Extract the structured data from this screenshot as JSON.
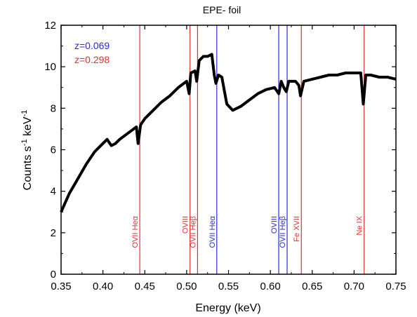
{
  "chart_data": {
    "type": "line",
    "title": "EPE- foil",
    "xlabel": "Energy (keV)",
    "ylabel_parts": {
      "counts": "Counts s",
      "exp1": "-1",
      "kev": " keV",
      "exp2": "-1"
    },
    "xlim": [
      0.35,
      0.75
    ],
    "ylim": [
      0,
      12
    ],
    "x_ticks": [
      "0.35",
      "0.40",
      "0.45",
      "0.50",
      "0.55",
      "0.60",
      "0.65",
      "0.70",
      "0.75"
    ],
    "y_ticks": [
      "0",
      "2",
      "4",
      "6",
      "8",
      "10",
      "12"
    ],
    "grid": false,
    "legend": [
      {
        "label": "z=0.069",
        "color": "#2a2adb"
      },
      {
        "label": "z=0.298",
        "color": "#e03030"
      }
    ],
    "series": [
      {
        "color": "#000000",
        "x": [
          0.35,
          0.36,
          0.37,
          0.38,
          0.39,
          0.4,
          0.405,
          0.41,
          0.415,
          0.42,
          0.43,
          0.44,
          0.442,
          0.445,
          0.45,
          0.46,
          0.47,
          0.48,
          0.49,
          0.5,
          0.503,
          0.505,
          0.51,
          0.512,
          0.515,
          0.52,
          0.525,
          0.53,
          0.533,
          0.535,
          0.538,
          0.542,
          0.548,
          0.555,
          0.565,
          0.575,
          0.585,
          0.595,
          0.605,
          0.61,
          0.613,
          0.616,
          0.619,
          0.622,
          0.63,
          0.634,
          0.636,
          0.64,
          0.65,
          0.66,
          0.67,
          0.68,
          0.69,
          0.7,
          0.708,
          0.711,
          0.714,
          0.72,
          0.73,
          0.74,
          0.75
        ],
        "y": [
          3.0,
          3.9,
          4.6,
          5.3,
          5.9,
          6.3,
          6.5,
          6.2,
          6.3,
          6.5,
          6.8,
          7.1,
          6.3,
          7.2,
          7.5,
          7.9,
          8.3,
          8.6,
          9.0,
          9.3,
          8.7,
          9.7,
          9.8,
          9.3,
          10.3,
          10.5,
          10.5,
          10.6,
          9.6,
          9.2,
          9.6,
          9.5,
          8.2,
          7.9,
          8.1,
          8.4,
          8.7,
          8.9,
          9.0,
          8.7,
          9.3,
          9.0,
          8.8,
          9.3,
          9.3,
          9.1,
          8.6,
          9.3,
          9.4,
          9.5,
          9.6,
          9.6,
          9.7,
          9.7,
          9.7,
          8.2,
          9.6,
          9.6,
          9.5,
          9.5,
          9.4
        ]
      }
    ],
    "vlines": [
      {
        "x": 0.444,
        "color": "#e03030",
        "label": "OVII Heα"
      },
      {
        "x": 0.504,
        "color": "#e03030",
        "label": "OVIII"
      },
      {
        "x": 0.513,
        "color": "#e03030",
        "label": "OVII Heβ"
      },
      {
        "x": 0.536,
        "color": "#2a2adb",
        "label": "OVII Heα"
      },
      {
        "x": 0.61,
        "color": "#2a2adb",
        "label": "OVIII"
      },
      {
        "x": 0.62,
        "color": "#2a2adb",
        "label": "OVII Heβ"
      },
      {
        "x": 0.637,
        "color": "#e03030",
        "label": "Fe XVII"
      },
      {
        "x": 0.712,
        "color": "#e03030",
        "label": "Ne IX"
      }
    ]
  }
}
